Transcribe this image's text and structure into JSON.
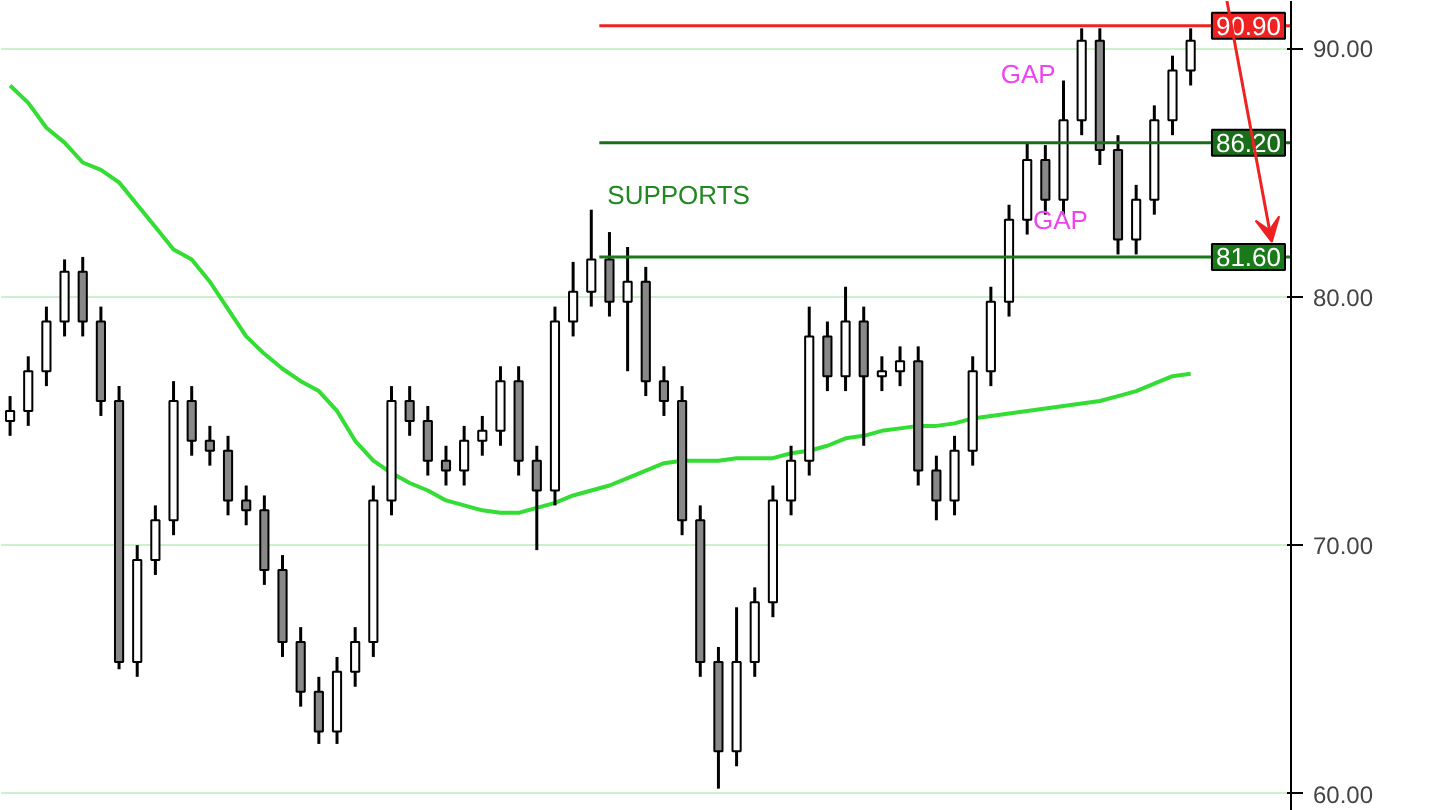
{
  "chart_data": {
    "type": "candlestick",
    "categories": [
      null,
      null,
      null,
      null,
      null,
      null,
      null,
      null,
      null,
      null,
      null,
      null,
      null,
      null,
      null,
      null,
      null,
      null,
      null,
      null,
      null,
      null,
      null,
      null,
      null,
      null,
      null,
      null,
      null,
      null,
      null,
      null,
      null,
      null,
      null,
      null,
      null,
      null,
      null,
      null,
      null,
      null,
      null,
      null,
      null,
      null,
      null,
      null,
      null,
      null,
      null,
      null,
      null,
      null,
      null,
      null,
      null,
      null,
      null,
      null,
      null,
      null,
      null,
      null,
      null,
      null
    ],
    "ohlc": [
      [
        75.0,
        76.0,
        74.4,
        75.4
      ],
      [
        75.4,
        77.6,
        74.8,
        77.0
      ],
      [
        77.0,
        79.6,
        76.4,
        79.0
      ],
      [
        79.0,
        81.5,
        78.4,
        81.0
      ],
      [
        81.0,
        81.6,
        78.4,
        79.0
      ],
      [
        79.0,
        79.6,
        75.2,
        75.8
      ],
      [
        75.8,
        76.4,
        65.0,
        65.3
      ],
      [
        65.3,
        70.0,
        64.7,
        69.4
      ],
      [
        69.4,
        71.6,
        68.8,
        71.0
      ],
      [
        71.0,
        76.6,
        70.4,
        75.8
      ],
      [
        75.8,
        76.4,
        73.6,
        74.2
      ],
      [
        74.2,
        74.8,
        73.2,
        73.8
      ],
      [
        73.8,
        74.4,
        71.2,
        71.8
      ],
      [
        71.8,
        72.4,
        70.8,
        71.4
      ],
      [
        71.4,
        72.0,
        68.4,
        69.0
      ],
      [
        69.0,
        69.6,
        65.5,
        66.1
      ],
      [
        66.1,
        66.7,
        63.5,
        64.1
      ],
      [
        64.1,
        64.7,
        62.0,
        62.5
      ],
      [
        62.5,
        65.5,
        62.0,
        64.9
      ],
      [
        64.9,
        66.7,
        64.3,
        66.1
      ],
      [
        66.1,
        72.4,
        65.5,
        71.8
      ],
      [
        71.8,
        76.4,
        71.2,
        75.8
      ],
      [
        75.8,
        76.4,
        74.4,
        75.0
      ],
      [
        75.0,
        75.6,
        72.8,
        73.4
      ],
      [
        73.4,
        74.0,
        72.4,
        73.0
      ],
      [
        73.0,
        74.8,
        72.4,
        74.2
      ],
      [
        74.2,
        75.2,
        73.6,
        74.6
      ],
      [
        74.6,
        77.2,
        74.0,
        76.6
      ],
      [
        76.6,
        77.2,
        72.8,
        73.4
      ],
      [
        73.4,
        74.0,
        69.8,
        72.2
      ],
      [
        72.2,
        79.6,
        71.6,
        79.0
      ],
      [
        79.0,
        81.4,
        78.4,
        80.2
      ],
      [
        80.2,
        83.5,
        79.6,
        81.5
      ],
      [
        81.5,
        82.6,
        79.2,
        79.8
      ],
      [
        79.8,
        82.0,
        77.0,
        80.6
      ],
      [
        80.6,
        81.2,
        76.0,
        76.6
      ],
      [
        76.6,
        77.2,
        75.2,
        75.8
      ],
      [
        75.8,
        76.4,
        70.4,
        71.0
      ],
      [
        71.0,
        71.6,
        64.7,
        65.3
      ],
      [
        65.3,
        65.9,
        60.2,
        61.7
      ],
      [
        61.7,
        67.5,
        61.1,
        65.3
      ],
      [
        65.3,
        68.3,
        64.7,
        67.7
      ],
      [
        67.7,
        72.4,
        67.1,
        71.8
      ],
      [
        71.8,
        74.0,
        71.2,
        73.4
      ],
      [
        73.4,
        79.6,
        72.8,
        78.4
      ],
      [
        78.4,
        79.0,
        76.2,
        76.8
      ],
      [
        76.8,
        80.4,
        76.2,
        79.0
      ],
      [
        79.0,
        79.6,
        74.0,
        76.8
      ],
      [
        76.8,
        77.6,
        76.2,
        77.0
      ],
      [
        77.0,
        78.0,
        76.4,
        77.4
      ],
      [
        77.4,
        78.0,
        72.4,
        73.0
      ],
      [
        73.0,
        73.6,
        71.0,
        71.8
      ],
      [
        71.8,
        74.4,
        71.2,
        73.8
      ],
      [
        73.8,
        77.6,
        73.2,
        77.0
      ],
      [
        77.0,
        80.4,
        76.4,
        79.8
      ],
      [
        79.8,
        83.7,
        79.2,
        83.1
      ],
      [
        83.1,
        86.2,
        82.5,
        85.5
      ],
      [
        85.5,
        86.1,
        83.3,
        83.9
      ],
      [
        83.9,
        88.7,
        83.3,
        87.1
      ],
      [
        87.1,
        90.8,
        86.5,
        90.3
      ],
      [
        90.3,
        90.8,
        85.3,
        85.9
      ],
      [
        85.9,
        86.5,
        81.7,
        82.3
      ],
      [
        82.3,
        84.5,
        81.7,
        83.9
      ],
      [
        83.9,
        87.7,
        83.3,
        87.1
      ],
      [
        87.1,
        89.7,
        86.5,
        89.1
      ],
      [
        89.1,
        90.8,
        88.5,
        90.3
      ]
    ],
    "color": "#000000",
    "series": [
      {
        "type": "line",
        "color": "#33dd33",
        "values": [
          88.5,
          87.8,
          86.8,
          86.2,
          85.4,
          85.1,
          84.6,
          83.7,
          82.8,
          81.9,
          81.5,
          80.6,
          79.5,
          78.4,
          77.7,
          77.1,
          76.6,
          76.2,
          75.4,
          74.2,
          73.4,
          72.9,
          72.5,
          72.2,
          71.8,
          71.6,
          71.4,
          71.3,
          71.3,
          71.5,
          71.7,
          72.0,
          72.2,
          72.4,
          72.7,
          73.0,
          73.3,
          73.4,
          73.4,
          73.4,
          73.5,
          73.5,
          73.5,
          73.7,
          73.8,
          74.0,
          74.3,
          74.4,
          74.6,
          74.7,
          74.8,
          74.8,
          74.9,
          75.1,
          75.2,
          75.3,
          75.4,
          75.5,
          75.6,
          75.7,
          75.8,
          76.0,
          76.2,
          76.5,
          76.8,
          76.9
        ]
      }
    ],
    "ylim": [
      59.3,
      91.9
    ],
    "yticks": [
      {
        "value": 60,
        "label": "60.00"
      },
      {
        "value": 70,
        "label": "70.00"
      },
      {
        "value": 80,
        "label": "80.00"
      },
      {
        "value": 90,
        "label": "90.00"
      }
    ],
    "grid": "y",
    "ref_lines": [
      {
        "axis": "y",
        "value": 90.9,
        "label": "90.90",
        "color": "#ee2222"
      },
      {
        "axis": "y",
        "value": 86.2,
        "label": "86.20",
        "color": "#1a6e1a"
      },
      {
        "axis": "y",
        "value": 81.6,
        "label": "81.60",
        "color": "#1a7a1a"
      }
    ],
    "annotations": [
      "SUPPORTS",
      "GAP",
      "GAP"
    ]
  }
}
